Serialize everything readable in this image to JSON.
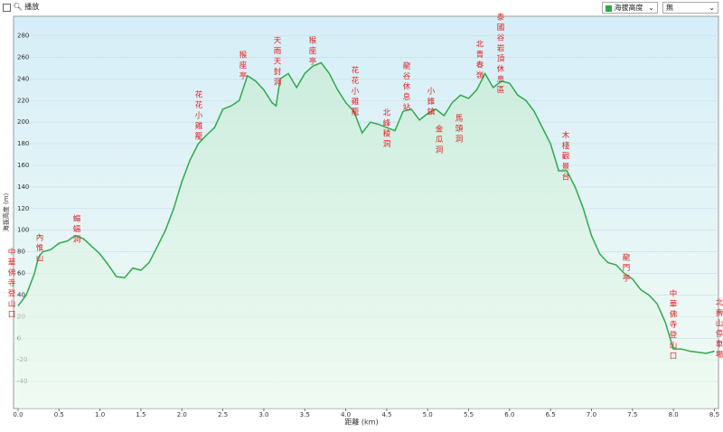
{
  "controls": {
    "play_label": "播放",
    "series_select": "海拔高度",
    "second_select": "無"
  },
  "chart_data": {
    "type": "line",
    "area": true,
    "xlabel": "距離 (km)",
    "ylabel": "海拔高度 (m)",
    "x": [
      0.0,
      0.1,
      0.2,
      0.25,
      0.3,
      0.4,
      0.5,
      0.6,
      0.7,
      0.8,
      0.9,
      1.0,
      1.1,
      1.2,
      1.3,
      1.4,
      1.5,
      1.6,
      1.7,
      1.8,
      1.9,
      2.0,
      2.1,
      2.2,
      2.3,
      2.4,
      2.5,
      2.6,
      2.7,
      2.8,
      2.9,
      3.0,
      3.1,
      3.15,
      3.2,
      3.3,
      3.4,
      3.5,
      3.6,
      3.7,
      3.8,
      3.9,
      4.0,
      4.1,
      4.2,
      4.3,
      4.4,
      4.5,
      4.6,
      4.7,
      4.8,
      4.9,
      5.0,
      5.1,
      5.2,
      5.3,
      5.4,
      5.5,
      5.6,
      5.7,
      5.8,
      5.9,
      6.0,
      6.1,
      6.2,
      6.3,
      6.4,
      6.5,
      6.6,
      6.7,
      6.8,
      6.9,
      7.0,
      7.1,
      7.2,
      7.3,
      7.4,
      7.5,
      7.6,
      7.7,
      7.8,
      7.9,
      8.0,
      8.1,
      8.2,
      8.3,
      8.4,
      8.5
    ],
    "series": [
      {
        "name": "海拔高度",
        "color": "#2eaa4a",
        "values": [
          30,
          40,
          60,
          75,
          80,
          82,
          88,
          90,
          95,
          92,
          85,
          78,
          68,
          57,
          56,
          65,
          63,
          70,
          85,
          100,
          120,
          145,
          165,
          180,
          188,
          195,
          212,
          215,
          220,
          243,
          238,
          230,
          218,
          215,
          240,
          245,
          232,
          245,
          252,
          255,
          245,
          230,
          218,
          210,
          190,
          200,
          198,
          195,
          192,
          210,
          212,
          202,
          208,
          212,
          206,
          218,
          225,
          222,
          230,
          245,
          232,
          238,
          236,
          225,
          220,
          210,
          195,
          180,
          155,
          155,
          140,
          120,
          95,
          78,
          70,
          68,
          60,
          55,
          45,
          40,
          32,
          15,
          -10,
          -10,
          -12,
          -13,
          -14,
          -12
        ]
      }
    ],
    "xlim": [
      -0.055,
      8.55
    ],
    "ylim": [
      -65,
      298
    ],
    "xticks": [
      {
        "value": 0,
        "label": "0.0"
      },
      0.5,
      {
        "value": 1,
        "label": "1.0"
      },
      1.5,
      {
        "value": 2,
        "label": "2.0"
      },
      2.5,
      {
        "value": 3,
        "label": "3.0"
      },
      3.5,
      {
        "value": 4,
        "label": "4.0"
      },
      4.5,
      {
        "value": 5,
        "label": "5.0"
      },
      5.5,
      {
        "value": 6,
        "label": "6.0"
      },
      6.5,
      {
        "value": 7,
        "label": "7.0"
      },
      7.5,
      {
        "value": 8,
        "label": "8.0"
      },
      8.5
    ],
    "yticks": [
      -40,
      -20,
      0,
      20,
      40,
      60,
      80,
      100,
      120,
      140,
      160,
      180,
      200,
      220,
      240,
      260,
      280
    ],
    "grid": true,
    "annotations": [
      "中華佛寺登山口",
      "內惟山",
      "蝙蝠洞",
      "花花小雞籠",
      "猴座亭",
      "天雨天封洞",
      "猴座亭",
      "花花小雞籠",
      "北峰稜洞",
      "龍谷休息站",
      "小錐鎮",
      "金瓜洞",
      "馬頭洞",
      "北青春嶺",
      "泰國谷岩頂休息區",
      "木棧觀景台",
      "龍門亭",
      "中華佛寺登山口",
      "北壽山停車場"
    ]
  }
}
